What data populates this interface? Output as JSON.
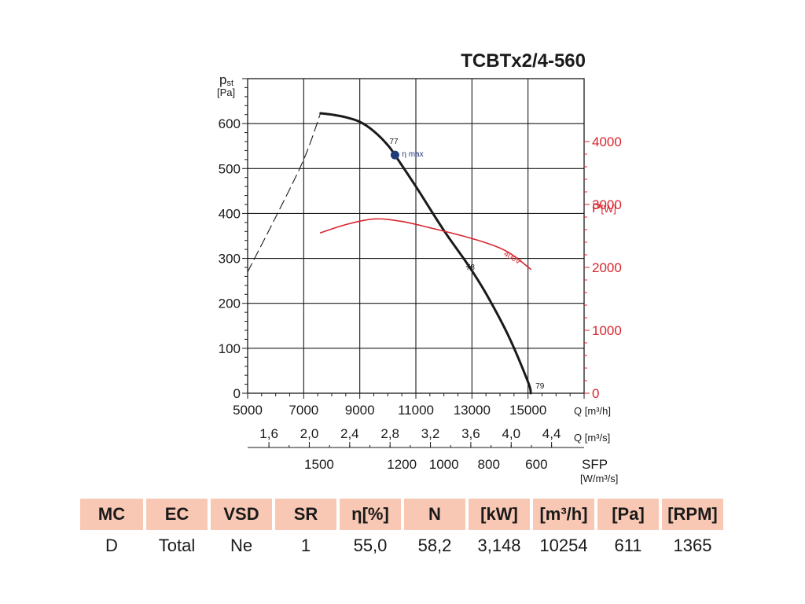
{
  "chart_data": {
    "type": "line",
    "title": "TCBTx2/4-560",
    "ylabel": "p",
    "ylabel_sub": "st",
    "yunit": "[Pa]",
    "ylim": [
      0,
      700
    ],
    "yticks": [
      "0",
      "100",
      "200",
      "300",
      "400",
      "500",
      "600"
    ],
    "ylabel_right": "P",
    "yunit_right": "[W]",
    "ylim_right": [
      0,
      5000
    ],
    "yticks_right": [
      "0",
      "1000",
      "2000",
      "3000",
      "4000"
    ],
    "xunit": "Q [m³/h]",
    "xlim": [
      5000,
      17000
    ],
    "xticks": [
      "5000",
      "7000",
      "9000",
      "11000",
      "13000",
      "15000"
    ],
    "x2unit": "Q [m³/s]",
    "x2ticks": [
      "1,6",
      "2,0",
      "2,4",
      "2,8",
      "3,2",
      "3,6",
      "4,0",
      "4,4"
    ],
    "x3label": "SFP",
    "x3unit": "[W/m³/s]",
    "x3ticks": [
      "1500",
      "1200",
      "1000",
      "800",
      "600"
    ],
    "grid": true,
    "series": [
      {
        "name": "",
        "axis": "left",
        "style": "solid",
        "color": "#1a1a1a",
        "x": [
          7600,
          8000,
          8500,
          9000,
          9500,
          10000,
          10254,
          11000,
          12000,
          12900,
          13500,
          14300,
          15000,
          15100
        ],
        "y": [
          623,
          620,
          614,
          604,
          583,
          552,
          530,
          460,
          362,
          282,
          222,
          128,
          25,
          0
        ]
      },
      {
        "name": "",
        "axis": "left",
        "style": "dashed",
        "color": "#1a1a1a",
        "x": [
          5000,
          6000,
          7000,
          7600
        ],
        "y": [
          270,
          392,
          520,
          623
        ]
      },
      {
        "name": "400V",
        "axis": "right",
        "style": "solid",
        "color": "#d8252d",
        "x": [
          7600,
          8500,
          9500,
          10500,
          11500,
          12500,
          13500,
          14300,
          15100
        ],
        "y": [
          2550,
          2680,
          2770,
          2730,
          2630,
          2520,
          2390,
          2240,
          1970
        ]
      }
    ],
    "annotations": [
      {
        "text": "77",
        "x": 10254,
        "y": 530
      },
      {
        "text": "78",
        "x": 12900,
        "y": 282
      },
      {
        "text": "79",
        "x": 15100,
        "y": 0
      },
      {
        "text": "η max",
        "x": 10254,
        "y": 530
      }
    ],
    "points": [
      {
        "name": "η max",
        "x": 10254,
        "y": 530,
        "color": "#1f3b7a"
      }
    ]
  },
  "table": {
    "headers": [
      "MC",
      "EC",
      "VSD",
      "SR",
      "η[%]",
      "N",
      "[kW]",
      "[m³/h]",
      "[Pa]",
      "[RPM]"
    ],
    "values": [
      "D",
      "Total",
      "Ne",
      "1",
      "55,0",
      "58,2",
      "3,148",
      "10254",
      "611",
      "1365"
    ]
  }
}
